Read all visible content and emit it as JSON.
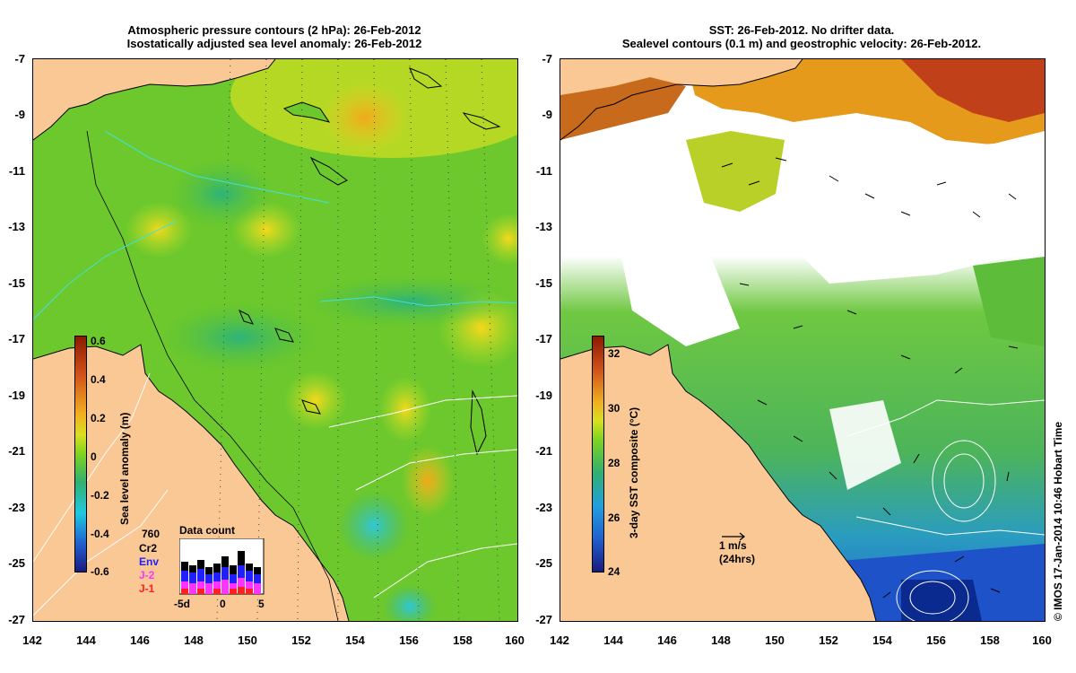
{
  "left_panel": {
    "title_line1": "Atmospheric pressure contours (2 hPa): 26-Feb-2012",
    "title_line2": "Isostatically adjusted sea level anomaly: 26-Feb-2012",
    "colorbar": {
      "label": "Sea level anomaly (m)",
      "ticks": [
        "0.6",
        "0.4",
        "0.2",
        "0",
        "-0.2",
        "-0.4",
        "-0.6"
      ],
      "range": [
        -0.6,
        0.6
      ]
    },
    "data_count": {
      "title": "Data count",
      "total": "760",
      "satellites": [
        {
          "name": "Cr2",
          "color": "#000000"
        },
        {
          "name": "Env",
          "color": "#1f1fff"
        },
        {
          "name": "J-2",
          "color": "#ff33ff"
        },
        {
          "name": "J-1",
          "color": "#ff2020"
        }
      ],
      "x_ticks": [
        "-5d",
        "0",
        "5"
      ]
    }
  },
  "right_panel": {
    "title_line1": "SST: 26-Feb-2012. No drifter data.",
    "title_line2": "Sealevel contours (0.1 m) and geostrophic velocity: 26-Feb-2012.",
    "colorbar": {
      "label": "3-day SST composite (°C)",
      "ticks": [
        "32",
        "30",
        "28",
        "26",
        "24"
      ],
      "range": [
        24,
        33
      ]
    },
    "scale_arrow": {
      "line1": "1 m/s",
      "line2": "(24hrs)"
    }
  },
  "axes": {
    "y_ticks": [
      "-7",
      "-9",
      "-11",
      "-13",
      "-15",
      "-17",
      "-19",
      "-21",
      "-23",
      "-25",
      "-27"
    ],
    "x_ticks": [
      "142",
      "144",
      "146",
      "148",
      "150",
      "152",
      "154",
      "156",
      "158",
      "160"
    ]
  },
  "credit": "© IMOS 17-Jan-2014 10:46 Hobart Time",
  "colors": {
    "land": "#f9c894",
    "ocean_green": "#7ed321",
    "sst_orange": "#e8901a",
    "sst_blue": "#2060d0"
  }
}
